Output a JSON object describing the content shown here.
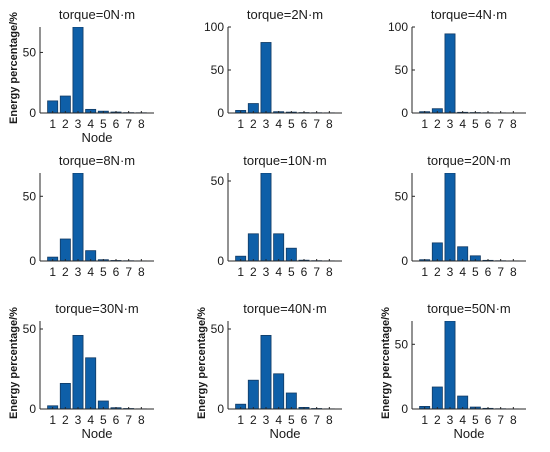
{
  "chart_data": [
    {
      "type": "bar",
      "title": "torque=0N·m",
      "xlabel": "Node",
      "ylabel": "Energy percentage/%",
      "categories": [
        "1",
        "2",
        "3",
        "4",
        "5",
        "6",
        "7",
        "8"
      ],
      "values": [
        10,
        14,
        71,
        3,
        1.5,
        0.8,
        0.3,
        0.2
      ],
      "ylim": [
        0,
        71
      ],
      "yticks": [
        0,
        50
      ],
      "grid": false
    },
    {
      "type": "bar",
      "title": "torque=2N·m",
      "xlabel": "",
      "ylabel": "",
      "categories": [
        "1",
        "2",
        "3",
        "4",
        "5",
        "6",
        "7",
        "8"
      ],
      "values": [
        3,
        11,
        82,
        1.5,
        1,
        0.5,
        0.3,
        0.2
      ],
      "ylim": [
        0,
        100
      ],
      "yticks": [
        0,
        50,
        100
      ],
      "grid": false
    },
    {
      "type": "bar",
      "title": "torque=4N·m",
      "xlabel": "",
      "ylabel": "",
      "categories": [
        "1",
        "2",
        "3",
        "4",
        "5",
        "6",
        "7",
        "8"
      ],
      "values": [
        1.5,
        5,
        92,
        0.8,
        0.5,
        0.3,
        0.2,
        0.1
      ],
      "ylim": [
        0,
        100
      ],
      "yticks": [
        0,
        50,
        100
      ],
      "grid": false
    },
    {
      "type": "bar",
      "title": "torque=8N·m",
      "xlabel": "",
      "ylabel": "",
      "categories": [
        "1",
        "2",
        "3",
        "4",
        "5",
        "6",
        "7",
        "8"
      ],
      "values": [
        3,
        17,
        68,
        8,
        1,
        0.4,
        0.2,
        0.1
      ],
      "ylim": [
        0,
        68
      ],
      "yticks": [
        0,
        50
      ],
      "grid": false
    },
    {
      "type": "bar",
      "title": "torque=10N·m",
      "xlabel": "",
      "ylabel": "",
      "categories": [
        "1",
        "2",
        "3",
        "4",
        "5",
        "6",
        "7",
        "8"
      ],
      "values": [
        3,
        17,
        55,
        17,
        8,
        0.5,
        0.2,
        0.1
      ],
      "ylim": [
        0,
        55
      ],
      "yticks": [
        0,
        50
      ],
      "grid": false
    },
    {
      "type": "bar",
      "title": "torque=20N·m",
      "xlabel": "",
      "ylabel": "",
      "categories": [
        "1",
        "2",
        "3",
        "4",
        "5",
        "6",
        "7",
        "8"
      ],
      "values": [
        1,
        14,
        68,
        11,
        4,
        0.5,
        0.2,
        0.1
      ],
      "ylim": [
        0,
        68
      ],
      "yticks": [
        0,
        50
      ],
      "grid": false
    },
    {
      "type": "bar",
      "title": "torque=30N·m",
      "xlabel": "Node",
      "ylabel": "Energy percentage/%",
      "categories": [
        "1",
        "2",
        "3",
        "4",
        "5",
        "6",
        "7",
        "8"
      ],
      "values": [
        2,
        16,
        46,
        32,
        5,
        0.8,
        0.3,
        0.1
      ],
      "ylim": [
        0,
        55
      ],
      "yticks": [
        0,
        50
      ],
      "grid": false
    },
    {
      "type": "bar",
      "title": "torque=40N·m",
      "xlabel": "Node",
      "ylabel": "Energy percentage/%",
      "categories": [
        "1",
        "2",
        "3",
        "4",
        "5",
        "6",
        "7",
        "8"
      ],
      "values": [
        3,
        18,
        46,
        22,
        10,
        1,
        0.3,
        0.1
      ],
      "ylim": [
        0,
        55
      ],
      "yticks": [
        0,
        50
      ],
      "grid": false
    },
    {
      "type": "bar",
      "title": "torque=50N·m",
      "xlabel": "Node",
      "ylabel": "Energy percentage/%",
      "categories": [
        "1",
        "2",
        "3",
        "4",
        "5",
        "6",
        "7",
        "8"
      ],
      "values": [
        2,
        17,
        68,
        10,
        1.5,
        0.5,
        0.2,
        0.1
      ],
      "ylim": [
        0,
        68
      ],
      "yticks": [
        0,
        50
      ],
      "grid": false
    }
  ]
}
